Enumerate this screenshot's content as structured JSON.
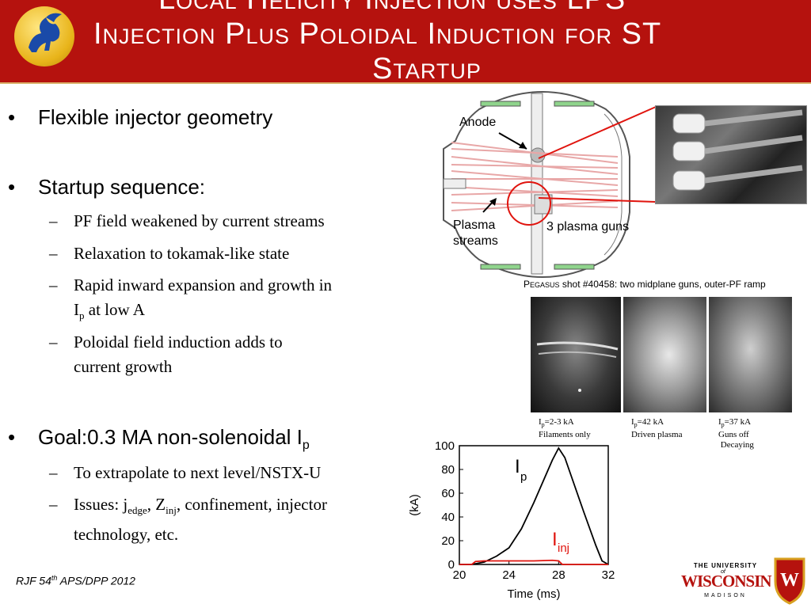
{
  "header": {
    "title_line1": "Local Helicity Injection uses LPS",
    "title_line2_a": "Injection Plus Poloidal Induction for ",
    "title_line2_b": "ST",
    "title_line3": "Startup"
  },
  "bullets": [
    {
      "text": "Flexible injector geometry"
    },
    {
      "text": "Startup sequence:",
      "subs": [
        "PF field weakened by current streams",
        "Relaxation to tokamak-like state",
        "Rapid inward expansion and growth in",
        "at low A",
        "Poloidal field induction adds to",
        "current growth"
      ]
    },
    {
      "text": "Goal:0.3 MA non-solenoidal I",
      "sub": "p",
      "subs": [
        "To extrapolate to next level/NSTX-U",
        "Issues: j",
        "edge",
        ", Z",
        "inj",
        ", confinement, injector",
        "technology, etc."
      ]
    }
  ],
  "diagram": {
    "anode_label": "Anode",
    "plasma_streams_line1": "Plasma",
    "plasma_streams_line2": "streams",
    "guns_label": "3 plasma guns"
  },
  "pegasus_caption": {
    "prefix": "P",
    "smallcaps": "EGASUS",
    "rest": " shot #40458: two midplane guns, outer-PF ramp"
  },
  "photo_captions": [
    {
      "line1_a": "I",
      "line1_sub": "p",
      "line1_b": "=2-3 kA",
      "line2": "Filaments only"
    },
    {
      "line1_a": "I",
      "line1_sub": "p",
      "line1_b": "=42 kA",
      "line2": "Driven plasma"
    },
    {
      "line1_a": "I",
      "line1_sub": "p",
      "line1_b": "=37 kA",
      "line2": "Guns off",
      "line3": "Decaying"
    }
  ],
  "chart_data": {
    "type": "line",
    "xlabel": "Time (ms)",
    "ylabel": "(kA)",
    "xlim": [
      20,
      32
    ],
    "ylim": [
      0,
      100
    ],
    "x_ticks": [
      "20",
      "24",
      "28",
      "32"
    ],
    "y_ticks": [
      "0",
      "20",
      "40",
      "60",
      "80",
      "100"
    ],
    "series": [
      {
        "name": "I_p",
        "label_main": "I",
        "label_sub": "p",
        "color": "#000000",
        "x": [
          20,
          21,
          22,
          23,
          24,
          25,
          26,
          27,
          27.5,
          28,
          28.5,
          29,
          30,
          31,
          31.5,
          32
        ],
        "y": [
          0,
          0,
          2,
          7,
          14,
          30,
          52,
          76,
          88,
          98,
          90,
          75,
          45,
          16,
          3,
          0
        ]
      },
      {
        "name": "I_inj",
        "label_main": "I",
        "label_sub": "inj",
        "color": "#e0140e",
        "x": [
          20,
          21,
          21.3,
          22,
          24,
          26,
          27.5,
          28,
          28.3,
          32
        ],
        "y": [
          0,
          0,
          2.5,
          3,
          3,
          3,
          3.5,
          3,
          0,
          0
        ]
      }
    ]
  },
  "footer": {
    "text": "RJF 54",
    "sup": "th",
    "rest": " APS/DPP 2012"
  },
  "university": {
    "line1": "THE UNIVERSITY",
    "line2": "of",
    "name": "WISCONSIN",
    "line3": "MADISON"
  },
  "colors": {
    "header_bg": "#b5120e",
    "accent_red": "#e0140e",
    "coil_green": "#8fd48c"
  }
}
